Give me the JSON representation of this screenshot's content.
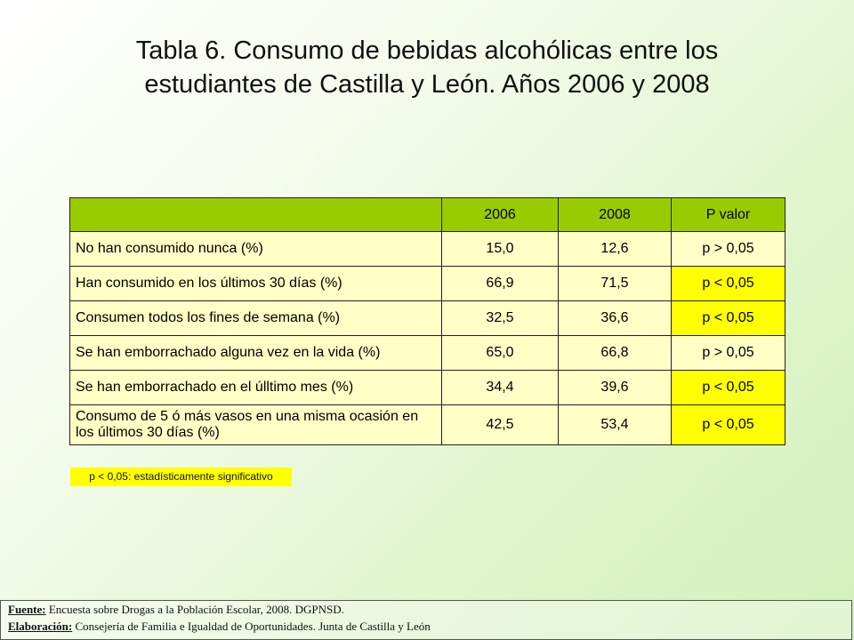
{
  "title": {
    "line1": "Tabla 6. Consumo de bebidas alcohólicas entre los",
    "line2": "estudiantes de Castilla y León. Años 2006 y 2008"
  },
  "table": {
    "header": [
      "",
      "2006",
      "2008",
      "P valor"
    ],
    "rows": [
      {
        "label": "No han consumido nunca (%)",
        "v2006": "15,0",
        "v2008": "12,6",
        "p": "p > 0,05"
      },
      {
        "label": "Han consumido en los últimos 30 días (%)",
        "v2006": "66,9",
        "v2008": "71,5",
        "p": "p < 0,05"
      },
      {
        "label": "Consumen todos los fines de semana (%)",
        "v2006": "32,5",
        "v2008": "36,6",
        "p": "p < 0,05"
      },
      {
        "label": "Se han emborrachado alguna vez en la vida (%)",
        "v2006": "65,0",
        "v2008": "66,8",
        "p": "p > 0,05"
      },
      {
        "label": "Se han emborrachado en el úlltimo mes (%)",
        "v2006": "34,4",
        "v2008": "39,6",
        "p": "p < 0,05"
      },
      {
        "label": "Consumo de 5 ó más vasos en una misma ocasión en los últimos 30 días (%)",
        "v2006": "42,5",
        "v2008": "53,4",
        "p": "p < 0,05"
      }
    ]
  },
  "legend": "p < 0,05: estadísticamente significativo",
  "footer": {
    "fuente_key": "Fuente:",
    "fuente_text": " Encuesta sobre Drogas a la Población Escolar, 2008. DGPNSD.",
    "elaboracion_key": "Elaboración:",
    "elaboracion_text": " Consejería de Familia e Igualdad de Oportunidades. Junta de Castilla y León"
  },
  "colors": {
    "header_bg": "#99cc00",
    "cell_bg": "#ffffc6",
    "highlight": "#ffff00"
  }
}
